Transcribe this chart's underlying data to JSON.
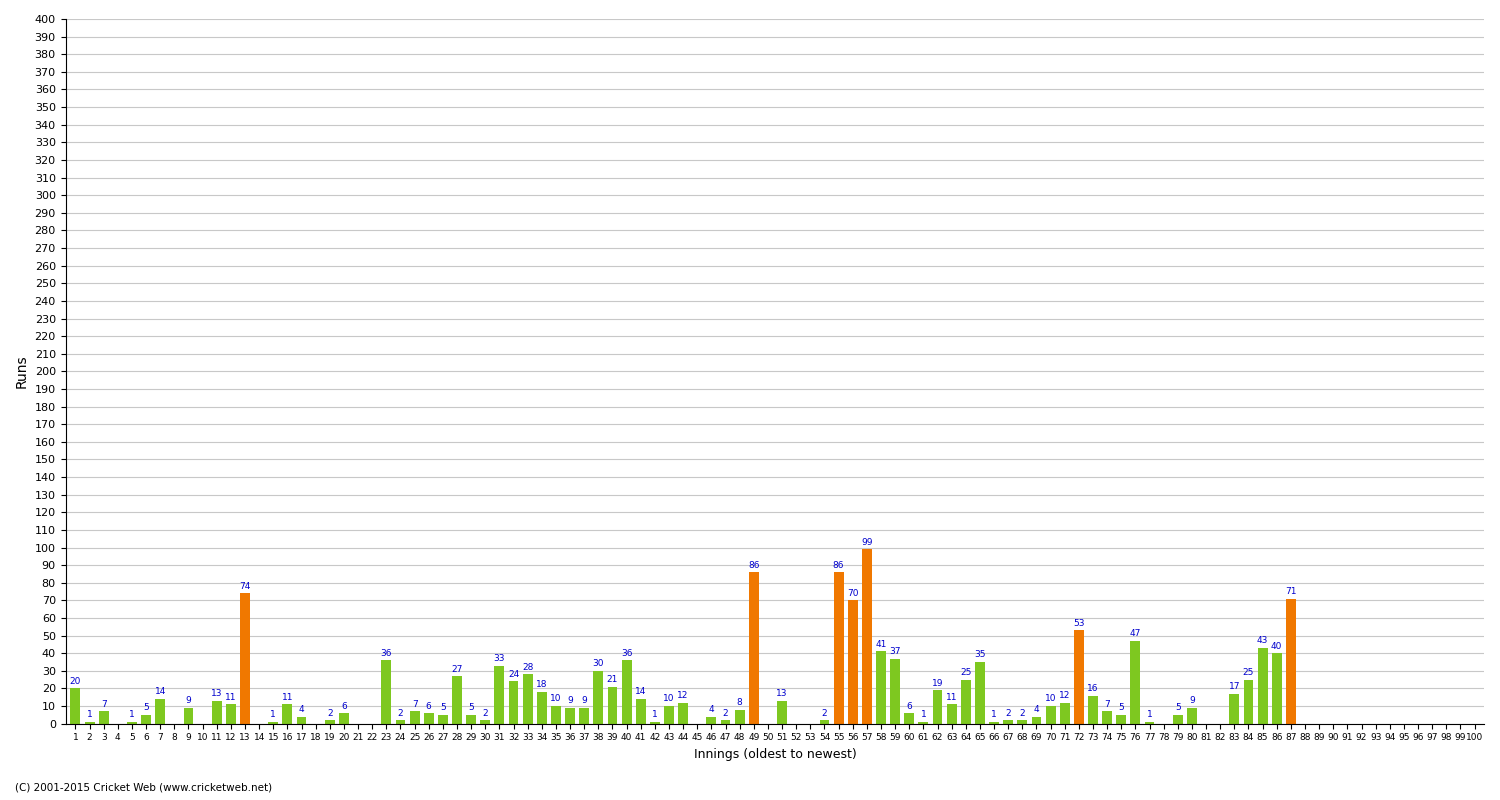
{
  "xlabel": "Innings (oldest to newest)",
  "ylabel": "Runs",
  "innings": [
    1,
    2,
    3,
    4,
    5,
    6,
    7,
    8,
    9,
    10,
    11,
    12,
    13,
    14,
    15,
    16,
    17,
    18,
    19,
    20,
    21,
    22,
    23,
    24,
    25,
    26,
    27,
    28,
    29,
    30,
    31,
    32,
    33,
    34,
    35,
    36,
    37,
    38,
    39,
    40,
    41,
    42,
    43,
    44,
    45,
    46,
    47,
    48,
    49,
    50,
    51,
    52,
    53,
    54,
    55,
    56,
    57,
    58,
    59,
    60,
    61,
    62,
    63,
    64,
    65,
    66,
    67,
    68,
    69,
    70,
    71,
    72,
    73,
    74,
    75,
    76,
    77,
    78,
    79,
    80,
    81,
    82,
    83,
    84,
    85,
    86,
    87,
    88,
    89,
    90,
    91,
    92,
    93,
    94,
    95,
    96,
    97,
    98,
    99,
    100
  ],
  "scores": [
    20,
    1,
    7,
    0,
    1,
    5,
    14,
    0,
    9,
    0,
    13,
    11,
    74,
    0,
    1,
    11,
    4,
    0,
    2,
    6,
    0,
    0,
    36,
    2,
    7,
    6,
    5,
    27,
    5,
    2,
    33,
    24,
    28,
    18,
    10,
    9,
    9,
    30,
    21,
    36,
    14,
    1,
    10,
    12,
    0,
    4,
    2,
    8,
    86,
    0,
    13,
    0,
    0,
    2,
    86,
    70,
    99,
    41,
    37,
    6,
    1,
    19,
    11,
    25,
    35,
    1,
    2,
    2,
    4,
    10,
    12,
    53,
    16,
    7,
    5,
    47,
    1,
    0,
    5,
    9,
    0,
    0,
    17,
    25,
    43,
    40,
    71,
    0,
    0,
    0,
    0,
    0,
    0,
    0,
    0,
    0,
    0,
    0,
    0,
    0
  ],
  "is_notout": [
    false,
    false,
    false,
    false,
    false,
    false,
    false,
    false,
    false,
    false,
    false,
    false,
    false,
    false,
    false,
    false,
    false,
    false,
    false,
    false,
    false,
    false,
    false,
    false,
    false,
    false,
    false,
    false,
    false,
    false,
    false,
    false,
    false,
    false,
    false,
    false,
    false,
    false,
    false,
    false,
    false,
    false,
    false,
    false,
    false,
    false,
    false,
    false,
    false,
    false,
    false,
    false,
    false,
    false,
    false,
    false,
    false,
    false,
    false,
    false,
    false,
    false,
    false,
    false,
    false,
    false,
    false,
    false,
    false,
    false,
    false,
    false,
    false,
    false,
    false,
    false,
    false,
    false,
    false,
    false,
    false,
    false,
    false,
    false,
    false,
    false,
    false,
    false,
    false,
    false,
    false,
    false,
    false,
    false,
    false,
    false,
    false,
    false,
    false,
    false
  ],
  "fifty_plus": [
    false,
    false,
    false,
    false,
    false,
    false,
    false,
    false,
    false,
    false,
    false,
    false,
    true,
    false,
    false,
    false,
    false,
    false,
    false,
    false,
    false,
    false,
    false,
    false,
    false,
    false,
    false,
    false,
    false,
    false,
    false,
    false,
    false,
    false,
    false,
    false,
    false,
    false,
    false,
    false,
    false,
    false,
    false,
    false,
    false,
    false,
    false,
    false,
    true,
    false,
    false,
    false,
    false,
    false,
    true,
    true,
    true,
    false,
    false,
    false,
    false,
    false,
    false,
    false,
    false,
    false,
    false,
    false,
    false,
    false,
    false,
    true,
    false,
    false,
    false,
    false,
    false,
    false,
    false,
    false,
    false,
    false,
    false,
    false,
    false,
    false,
    true,
    false,
    false,
    false,
    false,
    false,
    false,
    false,
    false,
    false,
    false,
    false,
    false,
    false
  ],
  "green_color": "#7ec820",
  "orange_color": "#f07800",
  "bg_color": "#ffffff",
  "grid_color": "#c8c8c8",
  "ylim": [
    0,
    400
  ],
  "yticks": [
    0,
    10,
    20,
    30,
    40,
    50,
    60,
    70,
    80,
    90,
    100,
    110,
    120,
    130,
    140,
    150,
    160,
    170,
    180,
    190,
    200,
    210,
    220,
    230,
    240,
    250,
    260,
    270,
    280,
    290,
    300,
    310,
    320,
    330,
    340,
    350,
    360,
    370,
    380,
    390,
    400
  ],
  "label_color": "#0000cd",
  "footer": "(C) 2001-2015 Cricket Web (www.cricketweb.net)"
}
